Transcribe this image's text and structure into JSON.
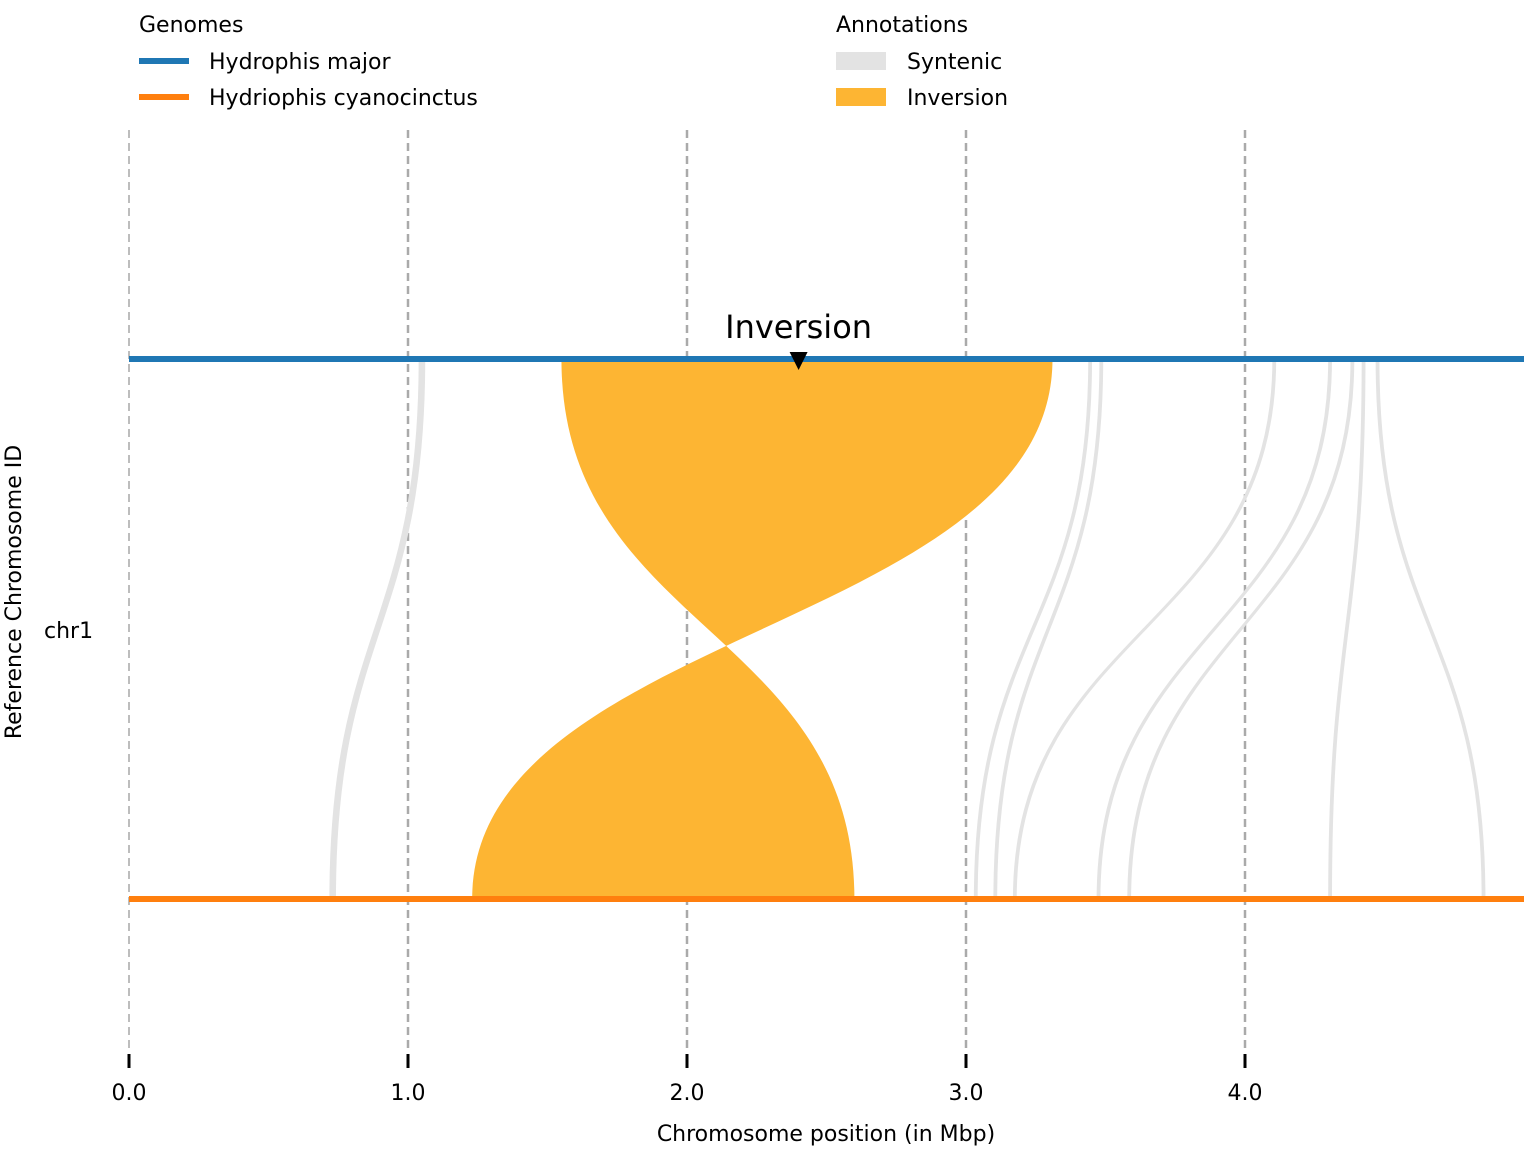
{
  "chart_data": {
    "type": "synteny",
    "xlabel": "Chromosome position (in Mbp)",
    "ylabel": "Reference Chromosome ID",
    "xlim": [
      0,
      5.0
    ],
    "xticks": [
      0.0,
      1.0,
      2.0,
      3.0,
      4.0
    ],
    "xtick_labels": [
      "0.0",
      "1.0",
      "2.0",
      "3.0",
      "4.0"
    ],
    "vertical_gridlines": true,
    "chromosome": "chr1",
    "genomes_legend_title": "Genomes",
    "annotations_legend_title": "Annotations",
    "legend_placement": "top",
    "genomes": [
      {
        "name": "Hydrophis major",
        "color": "#1f77b4",
        "role": "reference",
        "length": 5.0
      },
      {
        "name": "Hydriophis cyanocinctus",
        "color": "#ff7f0e",
        "role": "query",
        "length": 5.0
      }
    ],
    "annotation_types": [
      {
        "name": "Syntenic",
        "color": "#e3e3e3"
      },
      {
        "name": "Inversion",
        "color": "#fdb533"
      }
    ],
    "alignments": [
      {
        "type": "Syntenic",
        "ref": [
          1.04,
          1.06
        ],
        "qry": [
          0.72,
          0.74
        ]
      },
      {
        "type": "Inversion",
        "ref": [
          1.55,
          3.31
        ],
        "qry": [
          1.23,
          2.6
        ]
      },
      {
        "type": "Syntenic",
        "ref": [
          3.44,
          3.45
        ],
        "qry": [
          3.03,
          3.04
        ]
      },
      {
        "type": "Syntenic",
        "ref": [
          3.48,
          3.49
        ],
        "qry": [
          3.1,
          3.11
        ]
      },
      {
        "type": "Syntenic",
        "ref": [
          4.1,
          4.11
        ],
        "qry": [
          3.17,
          3.18
        ]
      },
      {
        "type": "Syntenic",
        "ref": [
          4.3,
          4.31
        ],
        "qry": [
          3.47,
          3.48
        ]
      },
      {
        "type": "Syntenic",
        "ref": [
          4.38,
          4.39
        ],
        "qry": [
          3.58,
          3.59
        ]
      },
      {
        "type": "Syntenic",
        "ref": [
          4.42,
          4.43
        ],
        "qry": [
          4.3,
          4.31
        ]
      },
      {
        "type": "Syntenic",
        "ref": [
          4.47,
          4.48
        ],
        "qry": [
          4.85,
          4.86
        ]
      }
    ],
    "annotations": [
      {
        "label": "Inversion",
        "x": 2.4
      }
    ]
  }
}
